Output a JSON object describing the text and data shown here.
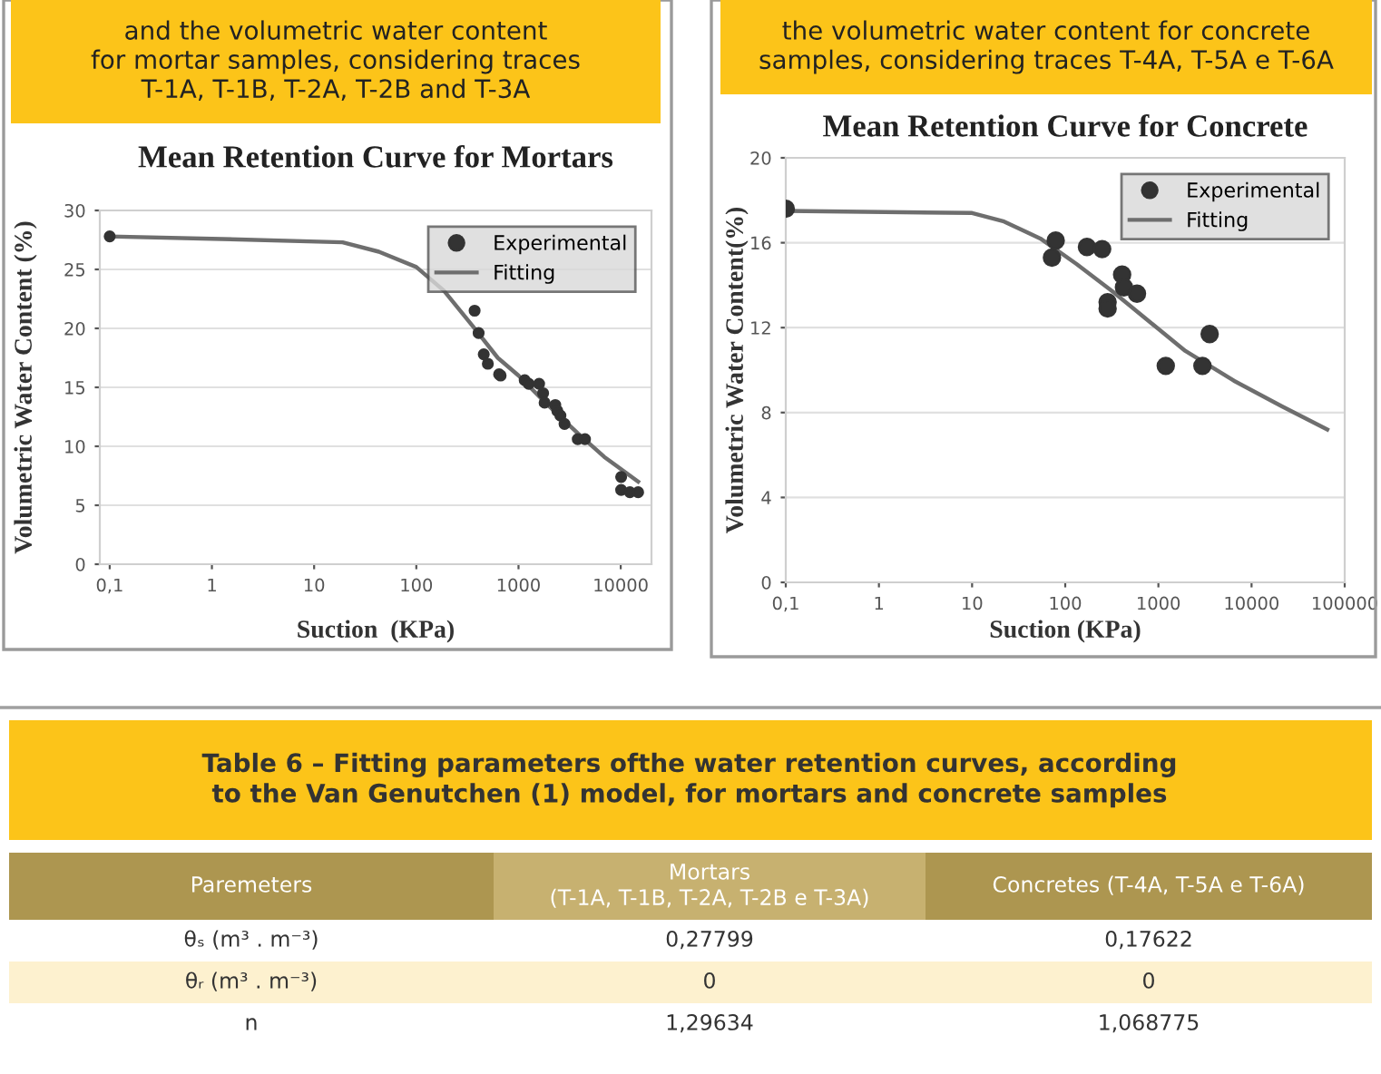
{
  "chart_data": [
    {
      "type": "scatter",
      "subtitle": "and the volumetric water content\nfor mortar samples, considering traces\nT-1A, T-1B, T-2A, T-2B and T-3A",
      "title": "Mean Retention Curve for Mortars",
      "xlabel": "Suction  (KPa)",
      "ylabel": "Volumetric Water Content (%)",
      "log": "x",
      "xlim": [
        0.08,
        20000
      ],
      "xticks": [
        {
          "value": 0.1,
          "label": "0,1"
        },
        1,
        10,
        100,
        1000,
        10000
      ],
      "ylim": [
        0,
        30
      ],
      "yticks": [
        0,
        5,
        10,
        15,
        20,
        25,
        30
      ],
      "grid": "y",
      "legend": "top right",
      "series": [
        {
          "name": "Experimental",
          "type": "scatter",
          "marker": "circle",
          "color": "#333333",
          "x": [
            0.1,
            372,
            407,
            457,
            501,
            646,
            668,
            1150,
            1260,
            1590,
            1740,
            1800,
            2290,
            2400,
            2570,
            2820,
            3800,
            4470,
            10100,
            10100,
            12300,
            14800
          ],
          "values": [
            27.8,
            21.5,
            19.6,
            17.8,
            17.0,
            16.1,
            16.0,
            15.6,
            15.3,
            15.3,
            14.5,
            13.7,
            13.5,
            13.0,
            12.6,
            11.9,
            10.6,
            10.6,
            7.4,
            6.3,
            6.1,
            6.1
          ]
        },
        {
          "name": "Fitting",
          "type": "line",
          "marker": "none",
          "color": "#6e6e6e",
          "line_style": "solid",
          "x": [
            0.1,
            1,
            19,
            43,
            100,
            186,
            363,
            627,
            1000,
            1830,
            3800,
            6900,
            14800
          ],
          "values": [
            27.8,
            27.6,
            27.3,
            26.5,
            25.2,
            23.2,
            20.1,
            17.5,
            16.0,
            13.7,
            11.1,
            9.1,
            7.0
          ]
        }
      ]
    },
    {
      "type": "scatter",
      "subtitle": "the volumetric water content for concrete\nsamples, considering traces T-4A, T-5A e T-6A",
      "title": "Mean Retention Curve for Concrete",
      "xlabel": "Suction (KPa)",
      "ylabel": "Volumetric Water Content(%)",
      "log": "x",
      "xlim": [
        0.1,
        100000
      ],
      "xticks": [
        {
          "value": 0.1,
          "label": "0,1"
        },
        1,
        10,
        100,
        1000,
        10000,
        100000
      ],
      "ylim": [
        0,
        20
      ],
      "yticks": [
        0,
        4,
        8,
        12,
        16,
        20
      ],
      "grid": "y",
      "legend": "top right",
      "series": [
        {
          "name": "Experimental",
          "type": "scatter",
          "marker": "circle",
          "color": "#333333",
          "x": [
            0.1,
            72,
            79,
            171,
            249,
            285,
            285,
            408,
            427,
            589,
            1200,
            2970,
            3550
          ],
          "values": [
            17.6,
            15.3,
            16.1,
            15.8,
            15.7,
            13.2,
            12.9,
            14.5,
            13.9,
            13.6,
            10.2,
            10.2,
            11.7
          ]
        },
        {
          "name": "Fitting",
          "type": "line",
          "marker": "none",
          "color": "#6e6e6e",
          "line_style": "solid",
          "x": [
            0.1,
            10,
            22,
            54,
            132,
            324,
            794,
            1950,
            6460,
            21000,
            65000
          ],
          "values": [
            17.5,
            17.4,
            17.0,
            16.2,
            15.0,
            13.7,
            12.3,
            10.9,
            9.5,
            8.3,
            7.2
          ]
        }
      ]
    },
    {
      "type": "other",
      "title": "Table 6 – Fitting parameters ofthe water retention curves, according\nto the Van Genutchen (1) model, for mortars and concrete samples",
      "categories": [
        "Paremeters",
        "Mortars\n(T-1A, T-1B, T-2A, T-2B e T-3A)",
        "Concretes (T-4A, T-5A e T-6A)"
      ],
      "y_categories": [
        "θₛ (m³ . m⁻³)",
        "θᵣ (m³ . m⁻³)",
        "n"
      ],
      "cell_labels": [
        [
          "0,27799",
          "0,17622"
        ],
        [
          "0",
          "0"
        ],
        [
          "1,29634",
          "1,068775"
        ]
      ]
    }
  ]
}
